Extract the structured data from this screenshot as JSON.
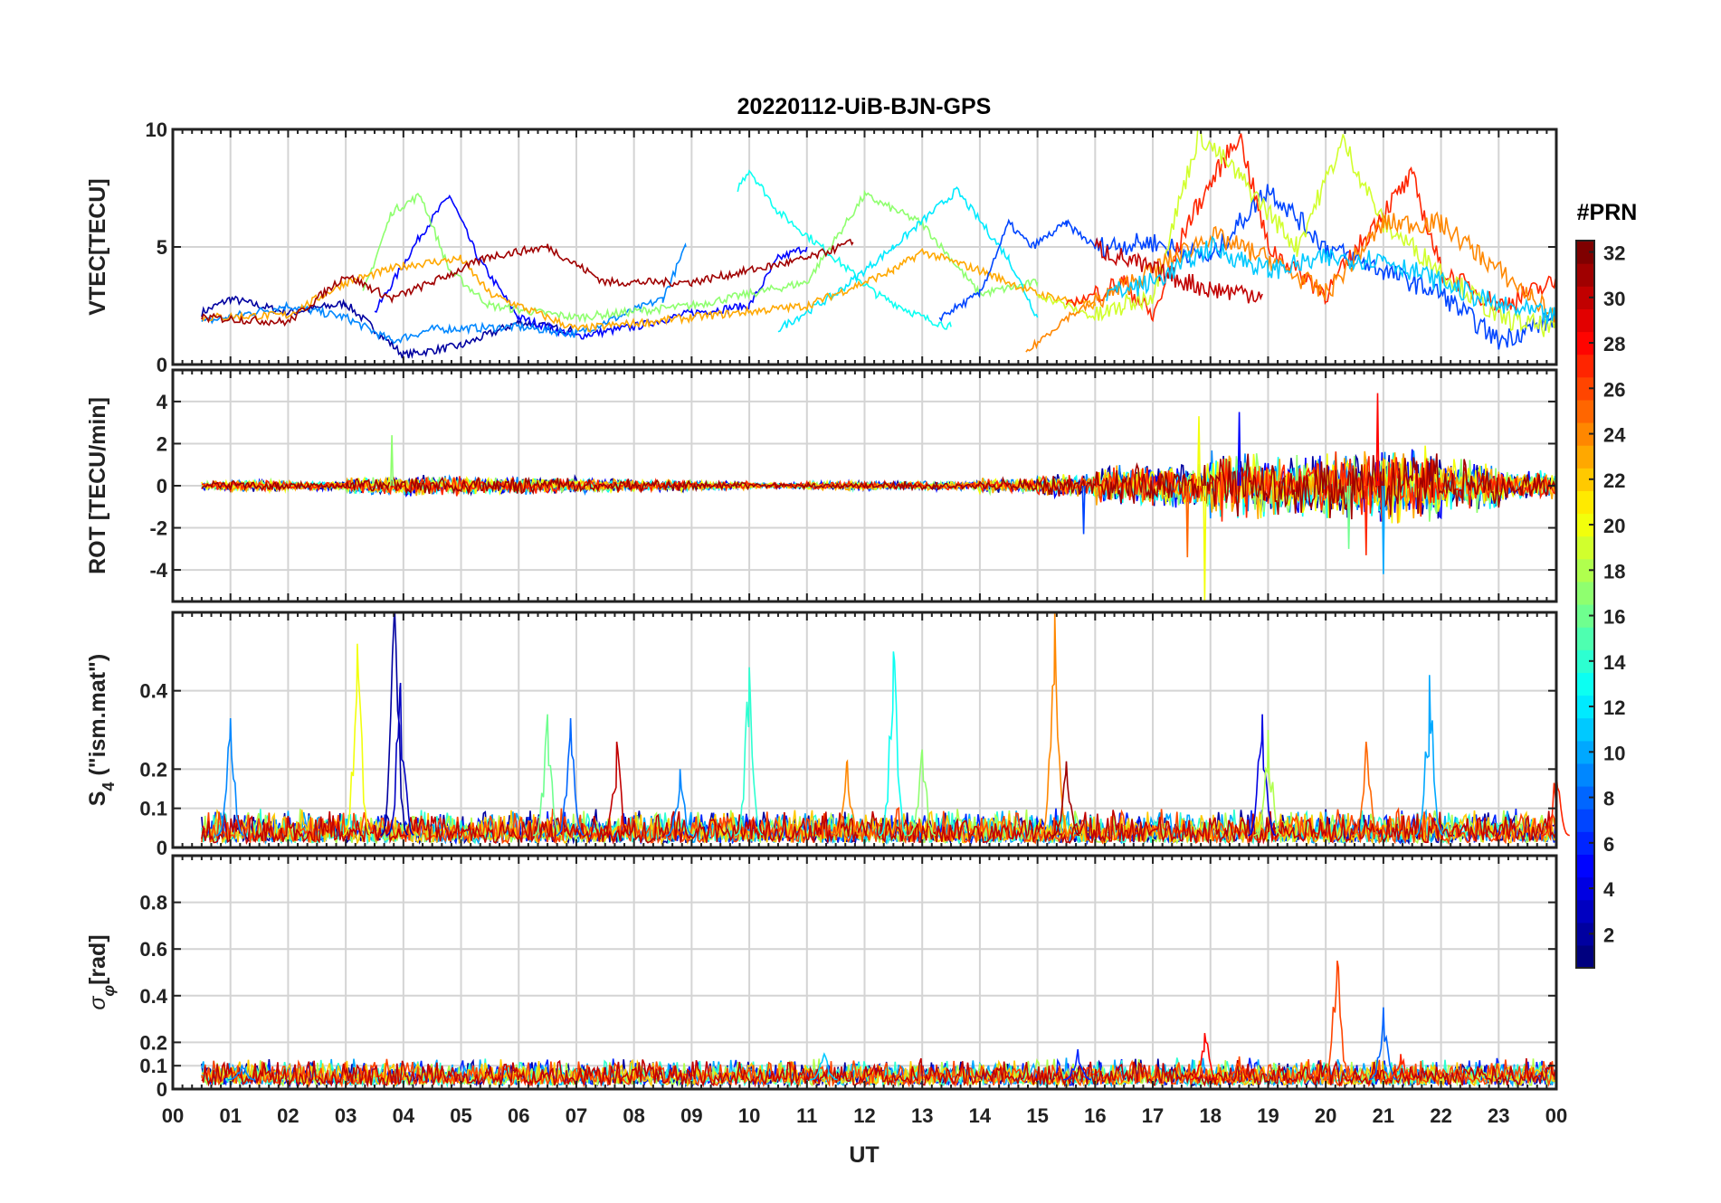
{
  "chart_data": {
    "type": "line",
    "title": "20220112-UiB-BJN-GPS",
    "xlabel": "UT",
    "xlim": [
      0,
      24
    ],
    "xtick_labels": [
      "00",
      "01",
      "02",
      "03",
      "04",
      "05",
      "06",
      "07",
      "08",
      "09",
      "10",
      "11",
      "12",
      "13",
      "14",
      "15",
      "16",
      "17",
      "18",
      "19",
      "20",
      "21",
      "22",
      "23",
      "00"
    ],
    "colorbar": {
      "label": "#PRN",
      "range": [
        1,
        32
      ],
      "ticks": [
        "2",
        "4",
        "6",
        "8",
        "10",
        "12",
        "14",
        "16",
        "18",
        "20",
        "22",
        "24",
        "26",
        "28",
        "30",
        "32"
      ],
      "colormap": "jet"
    },
    "panels": [
      {
        "id": "vtec",
        "ylabel": "VTEC[TECU]",
        "ylim": [
          0,
          10
        ],
        "yticks": [
          0,
          5,
          10
        ],
        "ytick_labels": [
          "0",
          "5",
          "10"
        ],
        "traces": [
          {
            "prn": 2,
            "points": [
              [
                0.5,
                2.2
              ],
              [
                1,
                2.8
              ],
              [
                2,
                2.2
              ],
              [
                3,
                2.6
              ],
              [
                3.5,
                1.5
              ],
              [
                4,
                0.4
              ],
              [
                5,
                0.8
              ],
              [
                6,
                1.8
              ],
              [
                7,
                1.4
              ]
            ]
          },
          {
            "prn": 5,
            "points": [
              [
                3.5,
                2.2
              ],
              [
                4.3,
                5.5
              ],
              [
                4.8,
                7.2
              ],
              [
                5.3,
                4.5
              ],
              [
                6,
                2
              ],
              [
                7,
                1.2
              ],
              [
                8,
                1.6
              ],
              [
                9,
                2.2
              ],
              [
                10,
                2.5
              ],
              [
                10.5,
                4.5
              ],
              [
                11,
                5
              ]
            ]
          },
          {
            "prn": 9,
            "points": [
              [
                0.5,
                1.8
              ],
              [
                2,
                2.5
              ],
              [
                3,
                2
              ],
              [
                3.8,
                1
              ],
              [
                4.5,
                1.5
              ],
              [
                6,
                1.6
              ],
              [
                7,
                1.3
              ],
              [
                8.5,
                2.8
              ],
              [
                8.9,
                5
              ]
            ]
          },
          {
            "prn": 13,
            "points": [
              [
                9.8,
                7.5
              ],
              [
                10,
                8.3
              ],
              [
                10.5,
                6.5
              ],
              [
                11.5,
                4.5
              ],
              [
                12.2,
                3
              ],
              [
                13,
                2
              ],
              [
                13.5,
                1.6
              ]
            ]
          },
          {
            "prn": 17,
            "points": [
              [
                3.3,
                3
              ],
              [
                3.8,
                6.5
              ],
              [
                4.3,
                7.2
              ],
              [
                4.8,
                4
              ],
              [
                5.5,
                2.5
              ],
              [
                7,
                2
              ],
              [
                9,
                2.5
              ],
              [
                11,
                3.5
              ],
              [
                12,
                7.2
              ],
              [
                13,
                6
              ],
              [
                14,
                3
              ],
              [
                15,
                3.5
              ]
            ]
          },
          {
            "prn": 12,
            "points": [
              [
                10.5,
                1.5
              ],
              [
                11.5,
                3
              ],
              [
                12.5,
                5
              ],
              [
                13.6,
                7.4
              ],
              [
                14.5,
                4.5
              ],
              [
                15,
                2
              ]
            ]
          },
          {
            "prn": 23,
            "points": [
              [
                0.5,
                2
              ],
              [
                2,
                2.1
              ],
              [
                3,
                3.5
              ],
              [
                4,
                4.2
              ],
              [
                5,
                4.5
              ],
              [
                5.5,
                3
              ],
              [
                7,
                1.5
              ],
              [
                9,
                2
              ],
              [
                11,
                2.5
              ],
              [
                12.5,
                4
              ],
              [
                13,
                4.8
              ],
              [
                14,
                4
              ],
              [
                15,
                3
              ],
              [
                16,
                2.5
              ]
            ]
          },
          {
            "prn": 31,
            "points": [
              [
                0.5,
                2
              ],
              [
                2,
                1.8
              ],
              [
                3,
                3.8
              ],
              [
                3.8,
                2.8
              ],
              [
                4.5,
                3.5
              ],
              [
                5.5,
                4.6
              ],
              [
                6.5,
                5
              ],
              [
                7.5,
                3.5
              ],
              [
                9,
                3.5
              ],
              [
                11,
                4.5
              ],
              [
                11.8,
                5.2
              ]
            ]
          },
          {
            "prn": 7,
            "points": [
              [
                13.3,
                2
              ],
              [
                14,
                3
              ],
              [
                14.5,
                6
              ],
              [
                14.9,
                5
              ],
              [
                15.5,
                6
              ],
              [
                16,
                5
              ],
              [
                17,
                5.2
              ],
              [
                18,
                4.5
              ],
              [
                19,
                7.5
              ],
              [
                20,
                5
              ],
              [
                21,
                4
              ],
              [
                22,
                3
              ],
              [
                23,
                1
              ],
              [
                24,
                2
              ]
            ]
          },
          {
            "prn": 27,
            "points": [
              [
                15.5,
                2.5
              ],
              [
                16.5,
                3.5
              ],
              [
                17,
                2
              ],
              [
                17.6,
                6
              ],
              [
                18.5,
                9.8
              ],
              [
                19,
                5
              ],
              [
                20,
                3
              ],
              [
                21,
                6.5
              ],
              [
                21.5,
                8
              ],
              [
                22,
                4
              ],
              [
                23,
                2.5
              ],
              [
                24,
                3.5
              ]
            ]
          },
          {
            "prn": 19,
            "points": [
              [
                15,
                3
              ],
              [
                16,
                2
              ],
              [
                17,
                3
              ],
              [
                17.8,
                9.8
              ],
              [
                18.5,
                8
              ],
              [
                19.5,
                5
              ],
              [
                20.3,
                9.5
              ],
              [
                21,
                6
              ],
              [
                22,
                4
              ],
              [
                23,
                2
              ],
              [
                24,
                1.5
              ]
            ]
          },
          {
            "prn": 24,
            "points": [
              [
                14.8,
                0.5
              ],
              [
                15.5,
                2
              ],
              [
                17,
                4
              ],
              [
                18,
                5.5
              ],
              [
                19,
                4.5
              ],
              [
                20,
                3
              ],
              [
                21,
                6
              ],
              [
                22,
                6
              ],
              [
                23,
                4
              ],
              [
                24,
                2
              ]
            ]
          },
          {
            "prn": 30,
            "points": [
              [
                16,
                5
              ],
              [
                17,
                4
              ],
              [
                18,
                3.2
              ],
              [
                18.9,
                3
              ]
            ]
          },
          {
            "prn": 11,
            "points": [
              [
                16.2,
                3
              ],
              [
                17,
                3.5
              ],
              [
                18,
                5
              ],
              [
                19,
                4
              ],
              [
                20,
                4.5
              ],
              [
                21,
                4.5
              ],
              [
                22,
                3.5
              ],
              [
                23,
                2.5
              ],
              [
                24,
                2
              ]
            ]
          }
        ]
      },
      {
        "id": "rot",
        "ylabel": "ROT [TECU/min]",
        "ylim": [
          -5.5,
          5.5
        ],
        "yticks": [
          -4,
          -2,
          0,
          2,
          4
        ],
        "ytick_labels": [
          "-4",
          "-2",
          "0",
          "2",
          "4"
        ],
        "activity_by_hour": [
          0.15,
          0.2,
          0.15,
          0.3,
          0.35,
          0.3,
          0.3,
          0.25,
          0.2,
          0.15,
          0.1,
          0.15,
          0.15,
          0.15,
          0.25,
          0.4,
          0.7,
          0.8,
          1.2,
          1.1,
          1.2,
          1.3,
          0.9,
          0.5
        ],
        "spikes": [
          [
            3.8,
            2.4,
            17
          ],
          [
            15.8,
            -2.3,
            7
          ],
          [
            17.6,
            -3.4,
            25
          ],
          [
            17.9,
            -5.5,
            20
          ],
          [
            17.8,
            3.3,
            20
          ],
          [
            18.5,
            3.5,
            5
          ],
          [
            20.7,
            -3.3,
            27
          ],
          [
            21.0,
            -4.2,
            10
          ],
          [
            20.9,
            4.4,
            28
          ],
          [
            20.4,
            -3,
            16
          ]
        ],
        "prns": [
          2,
          5,
          9,
          13,
          17,
          20,
          23,
          27,
          31
        ]
      },
      {
        "id": "s4",
        "ylabel_main": "S",
        "ylabel_sub": "4",
        "ylabel_tail": " (\"ism.mat\")",
        "ylim": [
          0,
          0.6
        ],
        "yticks": [
          0,
          0.1,
          0.2,
          0.4
        ],
        "ytick_labels": [
          "0",
          "0.1",
          "0.2",
          "0.4"
        ],
        "baseline": 0.03,
        "peaks": [
          [
            1.0,
            0.33,
            9
          ],
          [
            3.2,
            0.52,
            20
          ],
          [
            3.85,
            0.6,
            2
          ],
          [
            3.95,
            0.42,
            3
          ],
          [
            6.5,
            0.34,
            16
          ],
          [
            6.9,
            0.33,
            8
          ],
          [
            7.7,
            0.27,
            30
          ],
          [
            8.8,
            0.2,
            9
          ],
          [
            10.0,
            0.46,
            14
          ],
          [
            11.7,
            0.22,
            24
          ],
          [
            12.5,
            0.5,
            13
          ],
          [
            13.0,
            0.25,
            17
          ],
          [
            15.3,
            0.6,
            24
          ],
          [
            15.5,
            0.22,
            31
          ],
          [
            18.9,
            0.34,
            4
          ],
          [
            19.0,
            0.3,
            18
          ],
          [
            20.7,
            0.27,
            25
          ],
          [
            21.8,
            0.44,
            10
          ],
          [
            24,
            0.19,
            27
          ]
        ]
      },
      {
        "id": "sigma",
        "ylabel_main": "σ",
        "ylabel_sub": "φ",
        "ylabel_tail": "[rad]",
        "ylim": [
          0,
          1
        ],
        "yticks": [
          0,
          0.1,
          0.2,
          0.4,
          0.6,
          0.8
        ],
        "ytick_labels": [
          "0",
          "0.1",
          "0.2",
          "0.4",
          "0.6",
          "0.8"
        ],
        "baseline": 0.04,
        "peaks": [
          [
            1.2,
            0.1,
            9
          ],
          [
            11.3,
            0.15,
            11
          ],
          [
            15.7,
            0.17,
            6
          ],
          [
            17.9,
            0.24,
            28
          ],
          [
            18.5,
            0.14,
            26
          ],
          [
            20.2,
            0.55,
            26
          ],
          [
            21.0,
            0.35,
            8
          ],
          [
            21.3,
            0.15,
            27
          ]
        ]
      }
    ]
  }
}
